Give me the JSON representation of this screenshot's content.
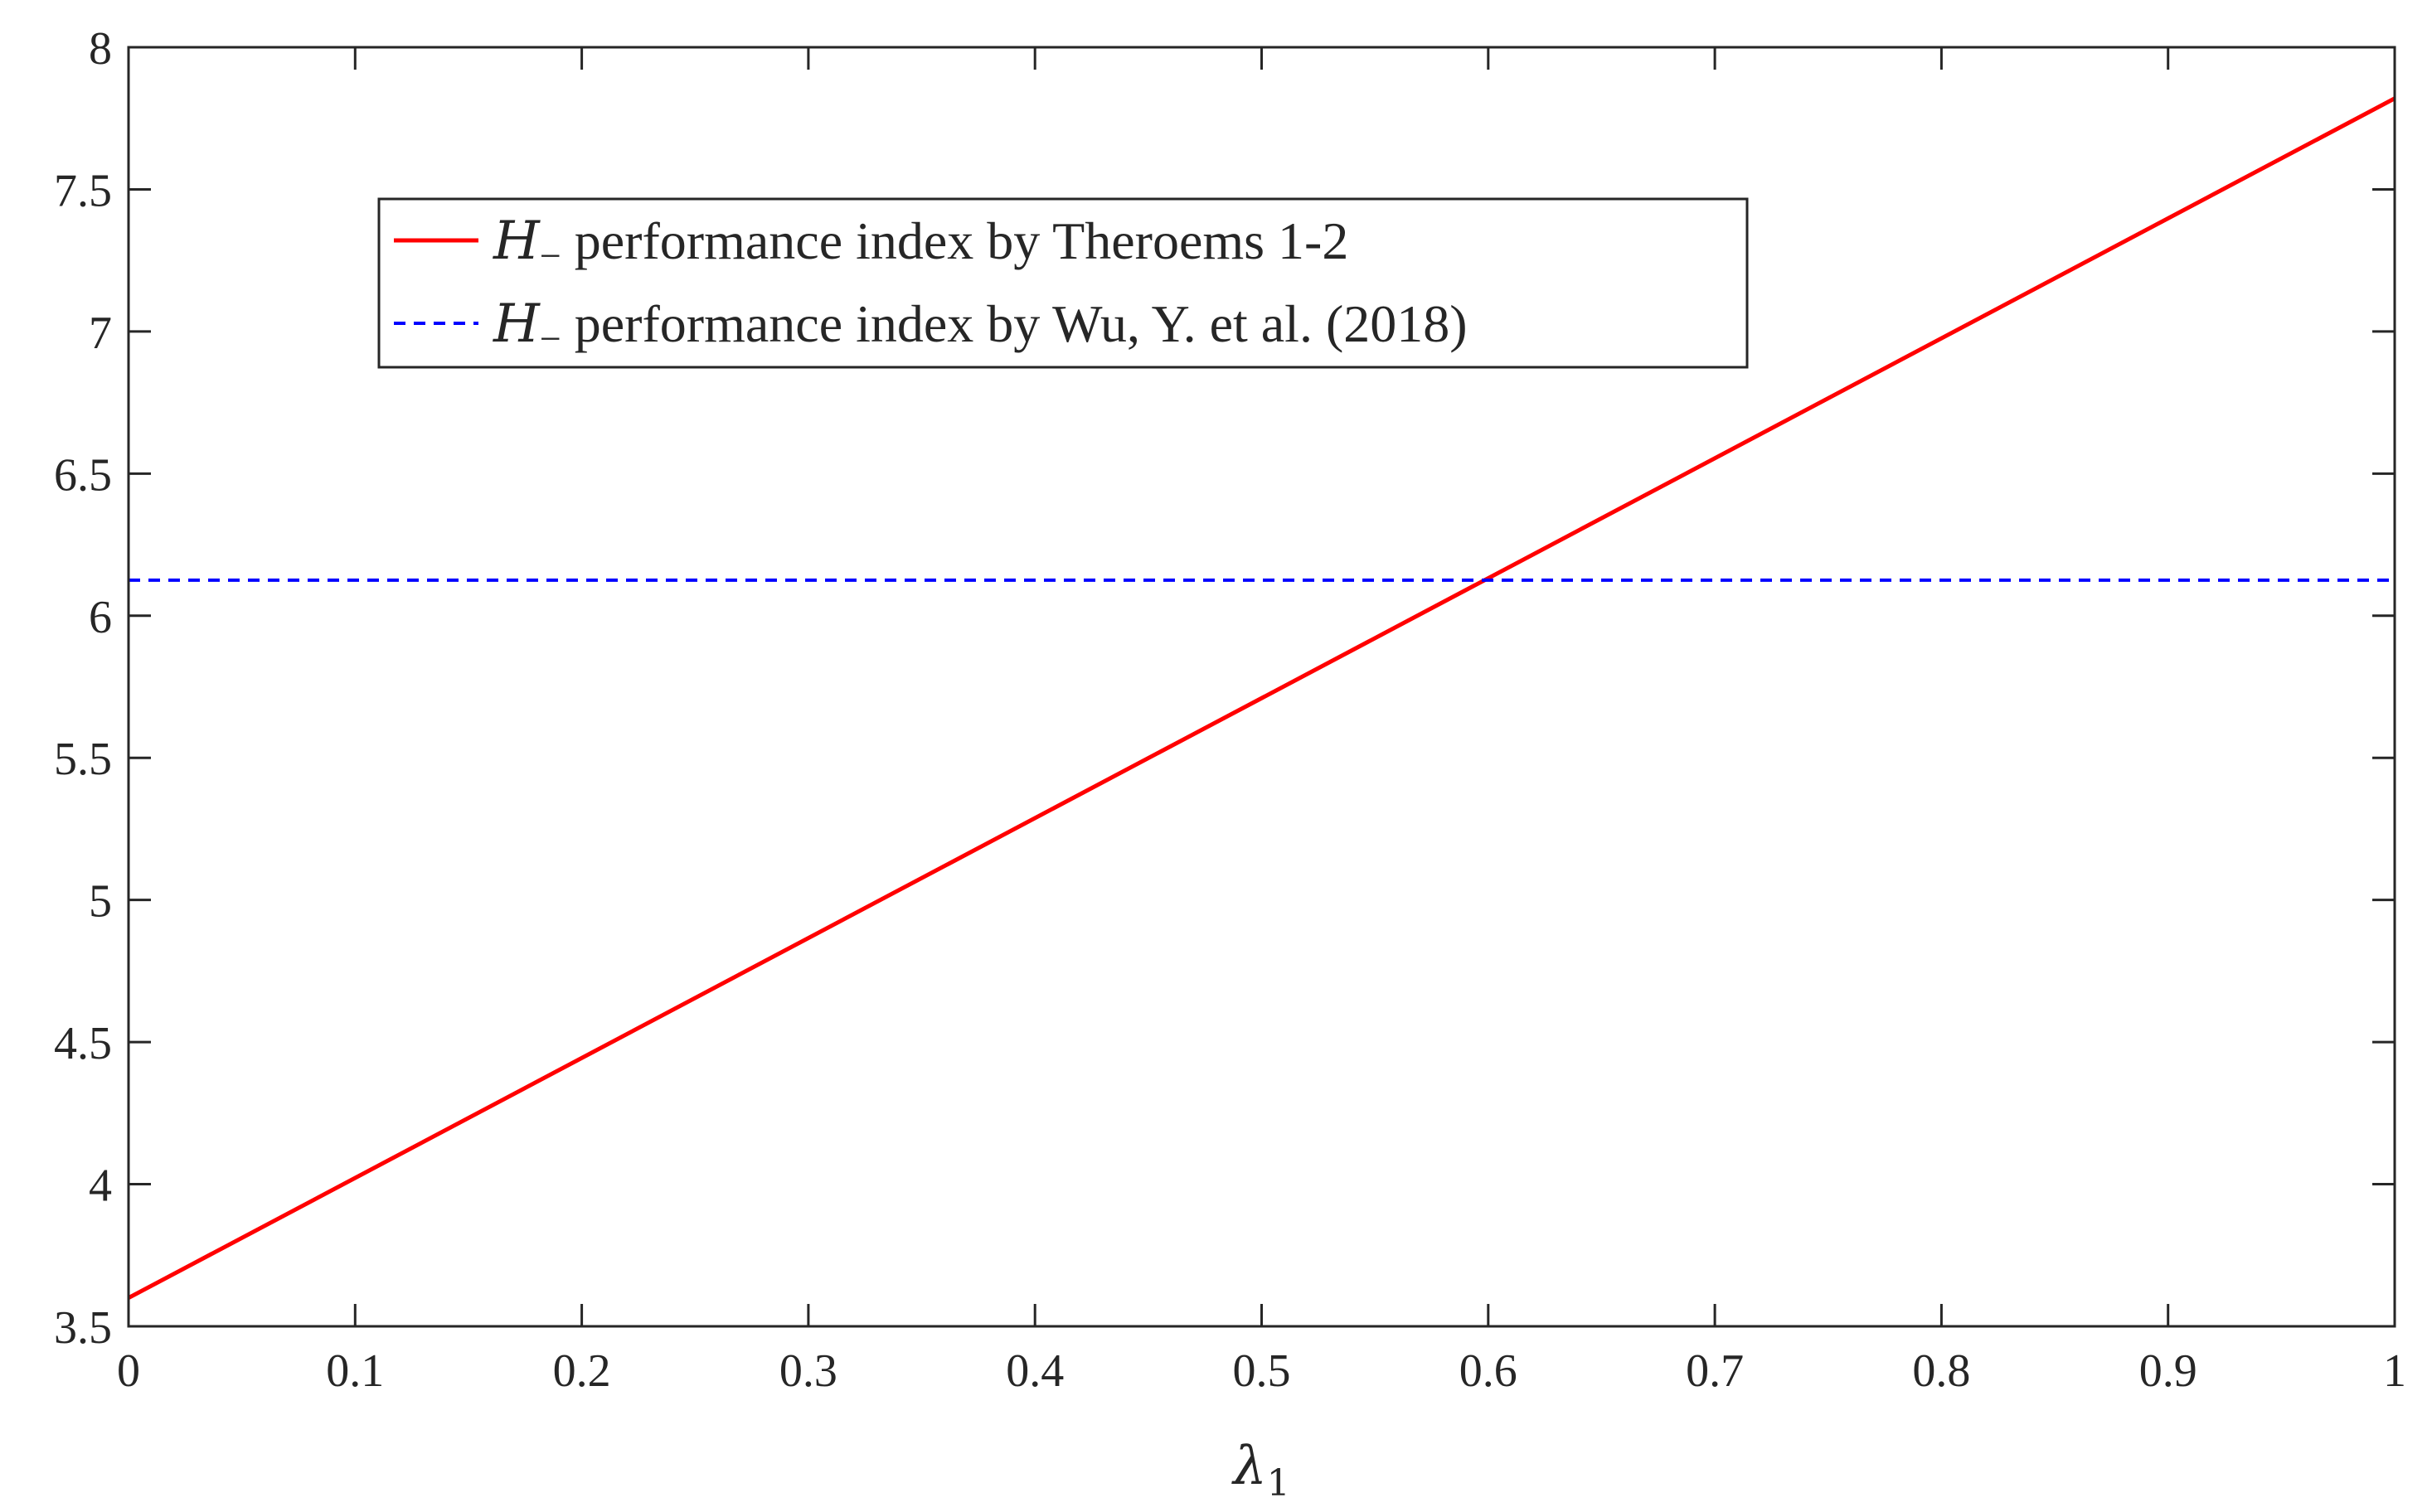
{
  "chart_data": {
    "type": "line",
    "title": "",
    "xlabel": "λ",
    "xlabel_subscript": "1",
    "ylabel": "",
    "xlim": [
      0,
      1
    ],
    "ylim": [
      3.5,
      8
    ],
    "x_ticks": [
      "0",
      "0.1",
      "0.2",
      "0.3",
      "0.4",
      "0.5",
      "0.6",
      "0.7",
      "0.8",
      "0.9",
      "1"
    ],
    "y_ticks": [
      "3.5",
      "4",
      "4.5",
      "5",
      "5.5",
      "6",
      "6.5",
      "7",
      "7.5",
      "8"
    ],
    "grid": false,
    "legend_position": "upper-left",
    "series": [
      {
        "name": "H_ performance index by Theroems 1-2",
        "legend_symbol": "H",
        "legend_subscript": "−",
        "legend_rest": " performance index by Theroems 1-2",
        "color": "#ff0000",
        "style": "solid",
        "x": [
          0,
          1
        ],
        "y": [
          3.6,
          7.82
        ]
      },
      {
        "name": "H_ performance index by Wu, Y. et al. (2018)",
        "legend_symbol": "H",
        "legend_subscript": "−",
        "legend_rest": " performance index by Wu, Y. et al. (2018)",
        "color": "#0000ff",
        "style": "dashed",
        "x": [
          0,
          1
        ],
        "y": [
          6.125,
          6.125
        ]
      }
    ]
  }
}
